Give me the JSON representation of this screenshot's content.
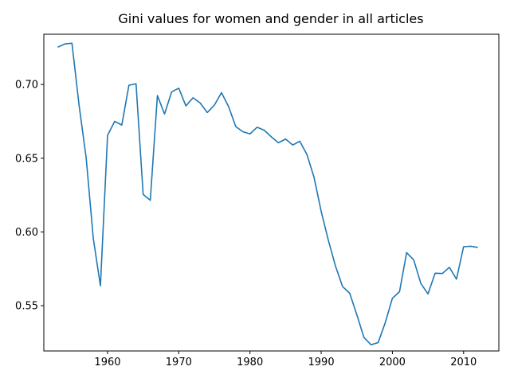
{
  "chart_data": {
    "type": "line",
    "title": "Gini values for women and gender in all articles",
    "xlabel": "",
    "ylabel": "",
    "xlim": [
      1951.05,
      2014.95
    ],
    "ylim": [
      0.5193,
      0.7341
    ],
    "grid": false,
    "x_ticks": [
      1960,
      1970,
      1980,
      1990,
      2000,
      2010
    ],
    "x_tick_labels": [
      "1960",
      "1970",
      "1980",
      "1990",
      "2000",
      "2010"
    ],
    "y_ticks": [
      0.55,
      0.6,
      0.65,
      0.7
    ],
    "y_tick_labels": [
      "0.55",
      "0.60",
      "0.65",
      "0.70"
    ],
    "series": [
      {
        "color": "#1f77b4",
        "x": [
          1953,
          1954,
          1955,
          1956,
          1957,
          1958,
          1959,
          1960,
          1961,
          1962,
          1963,
          1964,
          1965,
          1966,
          1967,
          1968,
          1969,
          1970,
          1971,
          1972,
          1973,
          1974,
          1975,
          1976,
          1977,
          1978,
          1979,
          1980,
          1981,
          1982,
          1983,
          1984,
          1985,
          1986,
          1987,
          1988,
          1989,
          1990,
          1991,
          1992,
          1993,
          1994,
          1995,
          1996,
          1997,
          1998,
          1999,
          2000,
          2001,
          2002,
          2003,
          2004,
          2005,
          2006,
          2007,
          2008,
          2009,
          2010,
          2011,
          2012
        ],
        "values": [
          0.7253,
          0.7275,
          0.728,
          0.686,
          0.65,
          0.5955,
          0.5635,
          0.6655,
          0.675,
          0.6725,
          0.6995,
          0.7005,
          0.6255,
          0.6215,
          0.6925,
          0.68,
          0.695,
          0.6975,
          0.6855,
          0.691,
          0.6875,
          0.681,
          0.686,
          0.6945,
          0.685,
          0.6715,
          0.668,
          0.6665,
          0.671,
          0.669,
          0.6645,
          0.6605,
          0.663,
          0.659,
          0.6615,
          0.6525,
          0.637,
          0.614,
          0.5945,
          0.577,
          0.563,
          0.5585,
          0.544,
          0.5285,
          0.5235,
          0.525,
          0.5385,
          0.555,
          0.5595,
          0.586,
          0.581,
          0.565,
          0.558,
          0.572,
          0.5718,
          0.576,
          0.568,
          0.59,
          0.5903,
          0.5895
        ]
      }
    ]
  }
}
